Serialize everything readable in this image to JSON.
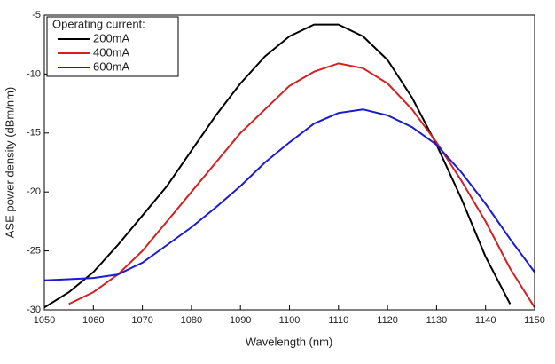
{
  "chart_data": {
    "type": "line",
    "x_label": "Wavelength (nm)",
    "y_label": "ASE power density (dBm/nm)",
    "legend_title": "Operating current:",
    "legend": "upper left",
    "x": [
      1050,
      1055,
      1060,
      1065,
      1070,
      1075,
      1080,
      1085,
      1090,
      1095,
      1100,
      1105,
      1110,
      1115,
      1120,
      1125,
      1130,
      1135,
      1140,
      1145,
      1150
    ],
    "series": [
      {
        "name": "200mA",
        "color": "#000000",
        "values": [
          -29.8,
          -28.5,
          -26.8,
          -24.5,
          -22,
          -19.5,
          -16.5,
          -13.5,
          -10.8,
          -8.5,
          -6.8,
          -5.8,
          -5.8,
          -6.8,
          -8.8,
          -12,
          -16,
          -20.5,
          -25.5,
          -29.5,
          null
        ]
      },
      {
        "name": "400mA",
        "color": "#d42020",
        "values": [
          null,
          -29.5,
          -28.5,
          -27,
          -25,
          -22.5,
          -20,
          -17.5,
          -15,
          -13,
          -11,
          -9.8,
          -9.1,
          -9.5,
          -10.8,
          -13,
          -15.8,
          -19,
          -22.5,
          -26.5,
          -29.8
        ]
      },
      {
        "name": "600mA",
        "color": "#1a1ad4",
        "values": [
          -27.5,
          -27.4,
          -27.3,
          -27,
          -26,
          -24.5,
          -23,
          -21.3,
          -19.5,
          -17.5,
          -15.8,
          -14.2,
          -13.3,
          -13,
          -13.5,
          -14.5,
          -16,
          -18.3,
          -21,
          -24,
          -26.8
        ]
      }
    ],
    "xlim": [
      1050,
      1150
    ],
    "xticks": [
      1050,
      1060,
      1070,
      1080,
      1090,
      1100,
      1110,
      1120,
      1130,
      1140,
      1150
    ],
    "ylim": [
      -30,
      -5
    ],
    "yticks": [
      -30,
      -25,
      -20,
      -15,
      -10,
      -5
    ]
  }
}
